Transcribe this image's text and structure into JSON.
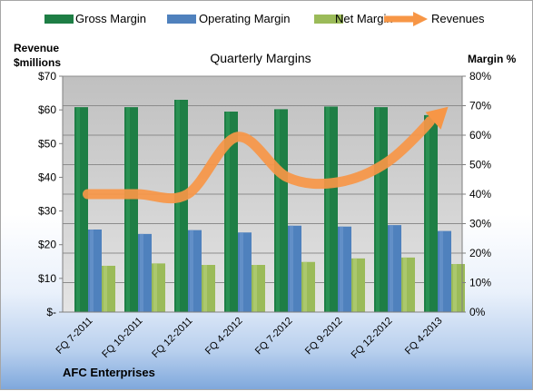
{
  "chart_data": {
    "type": "bar",
    "title": "Quarterly Margins",
    "company": "AFC Enterprises",
    "y_left_label": [
      "Revenue",
      "$millions"
    ],
    "y_right_label": "Margin %",
    "y_left_ticks": [
      "$-",
      "$10",
      "$20",
      "$30",
      "$40",
      "$50",
      "$60",
      "$70"
    ],
    "y_right_ticks": [
      "0%",
      "10%",
      "20%",
      "30%",
      "40%",
      "50%",
      "60%",
      "70%",
      "80%"
    ],
    "ylim_left": [
      0,
      70
    ],
    "ylim_right": [
      0,
      80
    ],
    "grid": true,
    "legend_position": "top",
    "categories": [
      "FQ 7-2011",
      "FQ 10-2011",
      "FQ 12-2011",
      "FQ 4-2012",
      "FQ 7-2012",
      "FQ 9-2012",
      "FQ 12-2012",
      "FQ 4-2013"
    ],
    "series": [
      {
        "name": "Gross Margin",
        "axis": "right",
        "kind": "bar",
        "color": "#1e7e45",
        "values": [
          69.5,
          69.5,
          72,
          68,
          68.8,
          69.7,
          69.5,
          66.8
        ]
      },
      {
        "name": "Operating Margin",
        "axis": "right",
        "kind": "bar",
        "color": "#4f81bd",
        "values": [
          28,
          26.5,
          27.8,
          27,
          29.3,
          29,
          29.5,
          27.5
        ]
      },
      {
        "name": "Net Margin",
        "axis": "right",
        "kind": "bar",
        "color": "#9bbb59",
        "values": [
          15.7,
          16.5,
          16,
          16,
          17,
          18.2,
          18.5,
          16.3
        ]
      },
      {
        "name": "Revenues",
        "axis": "left",
        "kind": "line",
        "color": "#f79646",
        "values": [
          35,
          35,
          35,
          52,
          40,
          38.5,
          44.5,
          58.5
        ]
      }
    ]
  }
}
